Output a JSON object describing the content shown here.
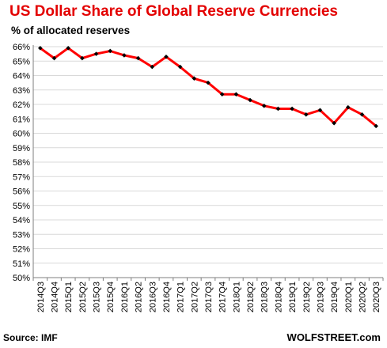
{
  "header": {
    "title": "US Dollar Share of Global Reserve Currencies",
    "subtitle": "% of allocated reserves"
  },
  "footer": {
    "source": "Source: IMF",
    "brand": "WOLFSTREET.com"
  },
  "colors": {
    "title": "#e30000",
    "line": "#ff0000",
    "marker": "#000000",
    "grid": "#d9d9d9"
  },
  "chart_data": {
    "type": "line",
    "title": "US Dollar Share of Global Reserve Currencies",
    "ylabel": "% of allocated reserves",
    "ylim": [
      50,
      66
    ],
    "grid": true,
    "y_ticks": [
      "50%",
      "51%",
      "52%",
      "53%",
      "54%",
      "55%",
      "56%",
      "57%",
      "58%",
      "59%",
      "60%",
      "61%",
      "62%",
      "63%",
      "64%",
      "65%",
      "66%"
    ],
    "categories": [
      "2014Q3",
      "2014Q4",
      "2015Q1",
      "2015Q2",
      "2015Q3",
      "2015Q4",
      "2016Q1",
      "2016Q2",
      "2016Q3",
      "2016Q4",
      "2017Q1",
      "2017Q2",
      "2017Q3",
      "2017Q4",
      "2018Q1",
      "2018Q2",
      "2018Q3",
      "2018Q4",
      "2019Q1",
      "2019Q2",
      "2019Q3",
      "2019Q4",
      "2020Q1",
      "2020Q2",
      "2020Q3"
    ],
    "series": [
      {
        "values": [
          65.9,
          65.2,
          65.9,
          65.2,
          65.5,
          65.7,
          65.4,
          65.2,
          64.6,
          65.3,
          64.6,
          63.8,
          63.5,
          62.7,
          62.7,
          62.3,
          61.9,
          61.7,
          61.7,
          61.3,
          61.6,
          60.7,
          61.8,
          61.3,
          60.5
        ]
      }
    ]
  }
}
